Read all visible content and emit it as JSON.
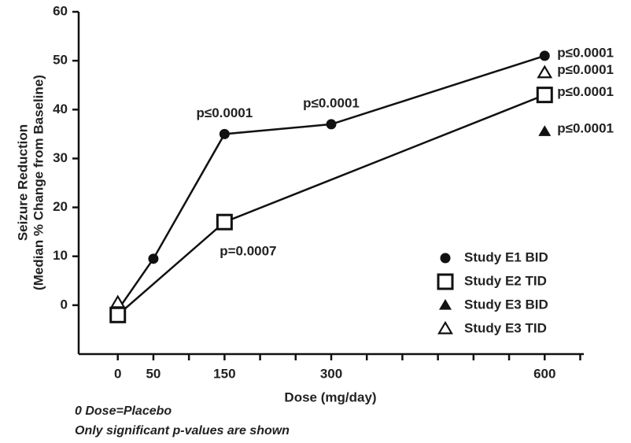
{
  "chart_data": {
    "type": "line",
    "y_label": [
      "Seizure Reduction",
      "(Median % Change from Baseline)"
    ],
    "x_label": "Dose (mg/day)",
    "notes": [
      "0 Dose=Placebo",
      "Only significant p-values are shown"
    ],
    "xlim": [
      -55,
      655
    ],
    "xticks": [
      0,
      50,
      150,
      300,
      600
    ],
    "x_minor_ticks": [
      100,
      200,
      250,
      350,
      400,
      450,
      500,
      550,
      650
    ],
    "ylim": [
      -10,
      60
    ],
    "yticks": [
      0,
      10,
      20,
      30,
      40,
      50,
      60
    ],
    "series": [
      {
        "name": "Study E1 BID",
        "marker": "circle",
        "color": "#111111",
        "line": true,
        "x": [
          0,
          50,
          150,
          300,
          600
        ],
        "values": [
          -1,
          9.5,
          35,
          37,
          51
        ],
        "point_labels": [
          null,
          null,
          "p≤0.0001",
          "p≤0.0001",
          "p≤0.0001"
        ]
      },
      {
        "name": "Study E2 TID",
        "marker": "open-square",
        "color": "#111111",
        "line": true,
        "x": [
          0,
          150,
          600
        ],
        "values": [
          -2,
          17,
          43
        ],
        "point_labels": [
          null,
          "p=0.0007",
          "p≤0.0001"
        ]
      },
      {
        "name": "Study E3 BID",
        "marker": "triangle",
        "color": "#111111",
        "line": false,
        "x": [
          600
        ],
        "values": [
          35.5
        ],
        "point_labels": [
          "p≤0.0001"
        ]
      },
      {
        "name": "Study E3 TID",
        "marker": "open-triangle",
        "color": "#111111",
        "line": false,
        "x": [
          0,
          600
        ],
        "values": [
          0.5,
          47.5
        ],
        "point_labels": [
          null,
          "p≤0.0001"
        ]
      }
    ]
  }
}
